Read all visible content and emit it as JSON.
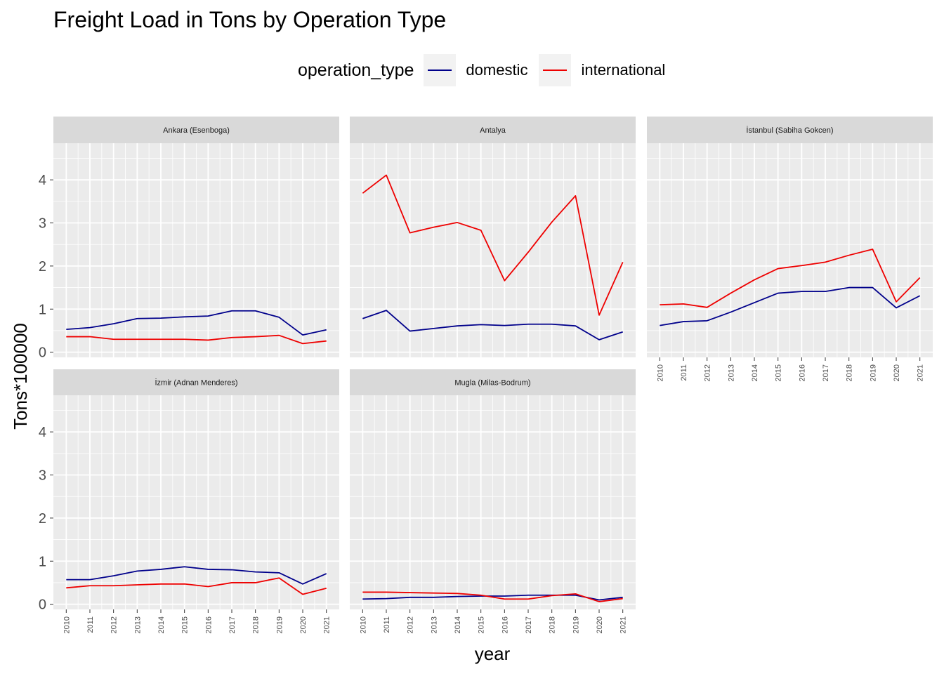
{
  "chart_data": {
    "type": "line",
    "title": "Freight Load in Tons by Operation Type",
    "xlabel": "year",
    "ylabel": "Tons*100000",
    "ylim": [
      -0.12,
      4.85
    ],
    "yticks": [
      0,
      1,
      2,
      3,
      4
    ],
    "x": [
      2010,
      2011,
      2012,
      2013,
      2014,
      2015,
      2016,
      2017,
      2018,
      2019,
      2020,
      2021
    ],
    "legend": {
      "title": "operation_type",
      "position": "top",
      "entries": [
        {
          "name": "domestic",
          "color": "#00008b"
        },
        {
          "name": "international",
          "color": "#ee0000"
        }
      ]
    },
    "facets": [
      {
        "label": "Ankara (Esenboga)",
        "series": [
          {
            "name": "domestic",
            "values": [
              0.53,
              0.57,
              0.66,
              0.78,
              0.79,
              0.82,
              0.84,
              0.96,
              0.96,
              0.81,
              0.4,
              0.52
            ]
          },
          {
            "name": "international",
            "values": [
              0.36,
              0.36,
              0.3,
              0.3,
              0.3,
              0.3,
              0.28,
              0.34,
              0.36,
              0.39,
              0.2,
              0.26
            ]
          }
        ]
      },
      {
        "label": "Antalya",
        "series": [
          {
            "name": "domestic",
            "values": [
              0.78,
              0.97,
              0.49,
              0.55,
              0.61,
              0.64,
              0.62,
              0.65,
              0.65,
              0.61,
              0.29,
              0.47
            ]
          },
          {
            "name": "international",
            "values": [
              3.69,
              4.11,
              2.77,
              2.9,
              3.01,
              2.83,
              1.66,
              2.32,
              3.02,
              3.63,
              0.86,
              2.09
            ]
          }
        ]
      },
      {
        "label": "İstanbul (Sabiha Gokcen)",
        "series": [
          {
            "name": "domestic",
            "values": [
              0.62,
              0.71,
              0.73,
              0.93,
              1.15,
              1.37,
              1.41,
              1.41,
              1.5,
              1.5,
              1.03,
              1.31
            ]
          },
          {
            "name": "international",
            "values": [
              1.1,
              1.12,
              1.04,
              1.37,
              1.68,
              1.94,
              2.01,
              2.09,
              2.25,
              2.39,
              1.17,
              1.73
            ]
          }
        ]
      },
      {
        "label": "İzmir (Adnan Menderes)",
        "series": [
          {
            "name": "domestic",
            "values": [
              0.57,
              0.57,
              0.66,
              0.77,
              0.81,
              0.87,
              0.81,
              0.8,
              0.75,
              0.73,
              0.47,
              0.71
            ]
          },
          {
            "name": "international",
            "values": [
              0.38,
              0.43,
              0.43,
              0.45,
              0.47,
              0.47,
              0.41,
              0.5,
              0.5,
              0.61,
              0.23,
              0.37
            ]
          }
        ]
      },
      {
        "label": "Mugla (Milas-Bodrum)",
        "series": [
          {
            "name": "domestic",
            "values": [
              0.12,
              0.13,
              0.16,
              0.16,
              0.18,
              0.19,
              0.19,
              0.21,
              0.21,
              0.21,
              0.1,
              0.16
            ]
          },
          {
            "name": "international",
            "values": [
              0.28,
              0.28,
              0.27,
              0.26,
              0.25,
              0.21,
              0.12,
              0.12,
              0.2,
              0.24,
              0.06,
              0.13
            ]
          }
        ]
      }
    ]
  }
}
